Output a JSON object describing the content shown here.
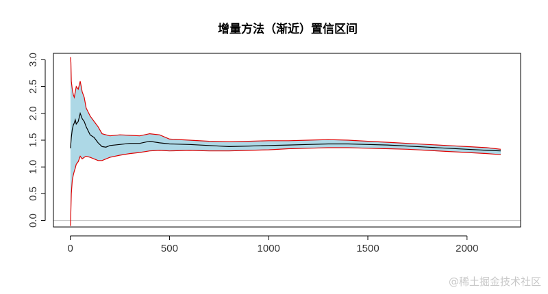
{
  "chart_data": {
    "type": "line",
    "title": "增量方法（渐近）置信区间",
    "xlabel": "",
    "ylabel": "",
    "xlim": [
      -85,
      2270
    ],
    "ylim": [
      -0.12,
      3.12
    ],
    "x_ticks": [
      0,
      500,
      1000,
      1500,
      2000
    ],
    "y_ticks": [
      0.0,
      0.5,
      1.0,
      1.5,
      2.0,
      2.5,
      3.0
    ],
    "x_tick_labels": [
      "0",
      "500",
      "1000",
      "1500",
      "2000"
    ],
    "y_tick_labels": [
      "0.0",
      "0.5",
      "1.0",
      "1.5",
      "2.0",
      "2.5",
      "3.0"
    ],
    "reference_line_y": 0.0,
    "grid": false,
    "legend": "none",
    "colors": {
      "band_fill": "#add8e6",
      "bounds": "#dd0000",
      "estimate": "#000000",
      "reference": "#c0c0c0",
      "axis": "#000000"
    },
    "series": [
      {
        "role": "upper_bound",
        "x": [
          1,
          3,
          5,
          10,
          15,
          20,
          25,
          30,
          40,
          50,
          60,
          70,
          80,
          100,
          120,
          140,
          160,
          180,
          200,
          250,
          300,
          350,
          400,
          450,
          500,
          600,
          700,
          800,
          900,
          1000,
          1100,
          1200,
          1300,
          1400,
          1500,
          1600,
          1700,
          1800,
          1900,
          2000,
          2100,
          2170
        ],
        "y": [
          3.05,
          2.95,
          2.6,
          2.45,
          2.35,
          2.3,
          2.4,
          2.5,
          2.45,
          2.6,
          2.4,
          2.3,
          2.1,
          1.95,
          1.85,
          1.75,
          1.62,
          1.6,
          1.58,
          1.6,
          1.59,
          1.58,
          1.62,
          1.6,
          1.52,
          1.5,
          1.48,
          1.47,
          1.48,
          1.49,
          1.49,
          1.5,
          1.51,
          1.5,
          1.48,
          1.46,
          1.44,
          1.42,
          1.4,
          1.38,
          1.36,
          1.33
        ]
      },
      {
        "role": "estimate",
        "x": [
          1,
          3,
          5,
          10,
          15,
          20,
          25,
          30,
          40,
          50,
          60,
          70,
          80,
          100,
          120,
          140,
          160,
          180,
          200,
          250,
          300,
          350,
          400,
          450,
          500,
          600,
          700,
          800,
          900,
          1000,
          1100,
          1200,
          1300,
          1400,
          1500,
          1600,
          1700,
          1800,
          1900,
          2000,
          2100,
          2170
        ],
        "y": [
          1.35,
          1.45,
          1.55,
          1.7,
          1.78,
          1.82,
          1.88,
          1.8,
          1.85,
          2.0,
          1.9,
          1.85,
          1.75,
          1.6,
          1.55,
          1.45,
          1.38,
          1.37,
          1.4,
          1.42,
          1.44,
          1.44,
          1.48,
          1.45,
          1.43,
          1.42,
          1.4,
          1.38,
          1.39,
          1.4,
          1.41,
          1.42,
          1.43,
          1.43,
          1.42,
          1.41,
          1.39,
          1.37,
          1.35,
          1.33,
          1.31,
          1.3
        ]
      },
      {
        "role": "lower_bound",
        "x": [
          1,
          3,
          5,
          10,
          15,
          20,
          25,
          30,
          40,
          50,
          60,
          70,
          80,
          100,
          120,
          140,
          160,
          180,
          200,
          250,
          300,
          350,
          400,
          450,
          500,
          600,
          700,
          800,
          900,
          1000,
          1100,
          1200,
          1300,
          1400,
          1500,
          1600,
          1700,
          1800,
          1900,
          2000,
          2100,
          2170
        ],
        "y": [
          -0.1,
          0.2,
          0.5,
          0.75,
          0.85,
          0.92,
          0.98,
          1.05,
          1.1,
          1.2,
          1.15,
          1.18,
          1.2,
          1.18,
          1.15,
          1.12,
          1.12,
          1.15,
          1.18,
          1.22,
          1.25,
          1.27,
          1.3,
          1.31,
          1.3,
          1.31,
          1.3,
          1.3,
          1.31,
          1.32,
          1.34,
          1.35,
          1.36,
          1.36,
          1.35,
          1.34,
          1.33,
          1.31,
          1.29,
          1.27,
          1.25,
          1.23
        ]
      }
    ]
  }
}
